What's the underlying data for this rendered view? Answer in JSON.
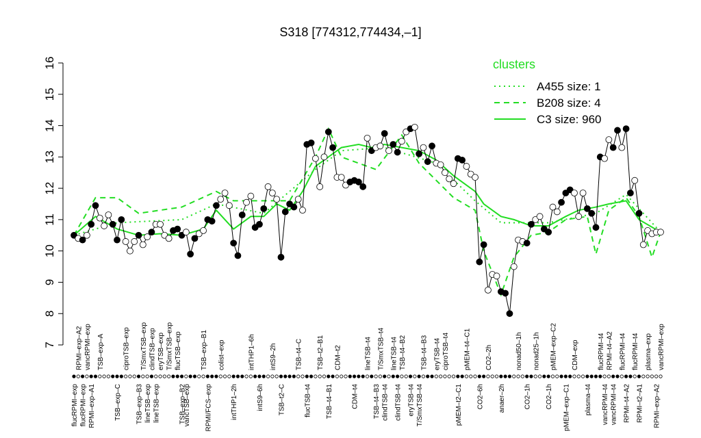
{
  "chart_data": {
    "type": "line",
    "title": "S318 [774312,774434,–1]",
    "ylim": [
      7,
      16
    ],
    "yticks": [
      7,
      8,
      9,
      10,
      11,
      12,
      13,
      14,
      15,
      16
    ],
    "categories_above": [
      null,
      "RPMI–exp–A2",
      null,
      "vancRPMI–exp",
      null,
      null,
      "TSB–exp–A",
      null,
      null,
      null,
      null,
      null,
      "ciproTSB–exp",
      null,
      null,
      null,
      "T/SmxTSB–exp",
      null,
      "clindTSB–exp",
      null,
      "eryTSB–exp",
      null,
      "T/SmxTSB–exp",
      null,
      "flucTSB–exp",
      null,
      null,
      null,
      null,
      null,
      "TSB–exp–B1",
      null,
      null,
      null,
      "colist–exp",
      null,
      null,
      null,
      null,
      null,
      null,
      "intTHP1–6h",
      null,
      null,
      null,
      null,
      "intS9–2h",
      null,
      null,
      null,
      null,
      null,
      "TSB–t4–C",
      null,
      null,
      null,
      null,
      "TSB–t2–B1",
      null,
      null,
      null,
      "CDM–t2",
      null,
      null,
      null,
      null,
      null,
      null,
      "lineTSB–t4",
      null,
      null,
      "T/SmxTSB–t4",
      null,
      null,
      "lineTSB–t4",
      null,
      "TSB–t4–B2",
      null,
      null,
      null,
      null,
      "TSB–t4–B3",
      null,
      null,
      "eryTSB–t4",
      null,
      "ciproTSB–t4",
      null,
      null,
      null,
      null,
      "pMEM–t4–C1",
      null,
      null,
      null,
      null,
      "CO2–2h",
      null,
      null,
      null,
      null,
      null,
      null,
      "nonad50–1h",
      null,
      null,
      null,
      "nonad25–1h",
      null,
      null,
      null,
      "pMEM–exp–C2",
      null,
      null,
      null,
      null,
      "CDM–exp",
      null,
      null,
      null,
      null,
      null,
      "flucRPMI–t4",
      null,
      "RPMI–t4–A2",
      null,
      null,
      "flucRPMI–t4",
      null,
      null,
      "flucRPMI–t4",
      null,
      null,
      "plasma–exp",
      null,
      null,
      "vancRPMI–exp"
    ],
    "categories_below": [
      "flucRPMI–exp",
      null,
      "flucRPMI–exp",
      null,
      "RPMI–exp–A1",
      null,
      null,
      null,
      null,
      null,
      "TSB–exp–C",
      null,
      null,
      null,
      null,
      "TSB–exp–B3",
      null,
      "lineTSB–exp",
      null,
      "lineTSB–exp",
      null,
      null,
      null,
      null,
      null,
      "TSB–exp–B2",
      "vancTSB–exp",
      null,
      null,
      null,
      null,
      "RPMI/FCS–exp",
      null,
      null,
      null,
      null,
      null,
      "intTHP1–2h",
      null,
      null,
      null,
      null,
      null,
      "intS9–6h",
      null,
      null,
      null,
      null,
      "TSB–t2–C",
      null,
      null,
      null,
      null,
      null,
      "flucTSB–t4",
      null,
      null,
      null,
      null,
      "TSB–t4–B1",
      null,
      null,
      null,
      null,
      null,
      "CDM–t4",
      null,
      null,
      null,
      null,
      "TSB–t4–B3",
      null,
      "clindTSB–t4",
      null,
      null,
      "clindTSB–t4",
      null,
      null,
      "eryTSB–t4",
      null,
      "T/SmxTSB–t4",
      null,
      null,
      null,
      null,
      null,
      null,
      null,
      null,
      "pMEM–t2–C1",
      null,
      null,
      null,
      null,
      "CO2–6h",
      null,
      null,
      null,
      null,
      "anaer–2h",
      null,
      null,
      null,
      null,
      null,
      "CO2–1h",
      null,
      null,
      null,
      null,
      "CO2–1h",
      null,
      null,
      null,
      "pMEM–exp–C1",
      null,
      null,
      null,
      null,
      "plasma–t4",
      null,
      null,
      null,
      "vancRPMI–t4",
      null,
      "vancRPMI–t4",
      null,
      null,
      "RPMI–t4–A2",
      null,
      null,
      "RPMI–t2–A1",
      null,
      null,
      null,
      "RPMI–exp–A2",
      null
    ],
    "values": [
      10.5,
      10.4,
      10.35,
      10.5,
      10.85,
      11.45,
      11.05,
      10.8,
      11.15,
      10.85,
      10.35,
      11.0,
      10.3,
      10.0,
      10.3,
      10.5,
      10.2,
      10.45,
      10.6,
      10.85,
      10.85,
      10.5,
      10.4,
      10.65,
      10.7,
      10.5,
      10.6,
      9.9,
      10.4,
      10.55,
      10.65,
      11.0,
      10.95,
      11.45,
      11.65,
      11.85,
      11.45,
      10.25,
      9.85,
      11.15,
      11.55,
      11.75,
      10.75,
      10.85,
      11.35,
      12.05,
      11.85,
      11.65,
      9.8,
      11.25,
      11.5,
      11.4,
      11.65,
      11.3,
      13.4,
      13.45,
      12.95,
      12.05,
      13.0,
      13.8,
      13.3,
      12.35,
      12.35,
      12.1,
      12.2,
      12.25,
      12.2,
      12.05,
      13.6,
      13.2,
      13.3,
      13.35,
      13.75,
      13.2,
      13.4,
      13.15,
      13.5,
      13.8,
      13.9,
      13.95,
      13.1,
      13.3,
      12.85,
      13.35,
      12.8,
      12.75,
      12.5,
      12.3,
      12.15,
      12.95,
      12.9,
      12.7,
      12.45,
      12.35,
      9.65,
      10.2,
      8.75,
      9.25,
      9.2,
      8.7,
      8.65,
      8.0,
      9.5,
      10.35,
      10.3,
      10.25,
      10.85,
      11.0,
      11.1,
      10.7,
      10.6,
      11.4,
      11.25,
      11.55,
      11.85,
      11.95,
      11.85,
      11.1,
      11.85,
      11.35,
      11.2,
      10.75,
      13.0,
      12.95,
      13.55,
      13.3,
      13.85,
      13.3,
      13.9,
      11.85,
      12.25,
      11.2,
      10.2,
      10.65,
      10.55,
      10.6,
      10.6
    ],
    "point_colors": [
      "#000",
      "#fff",
      "#000",
      "#fff",
      "#000",
      "#000",
      "#fff",
      "#fff",
      "#fff",
      "#000",
      "#000",
      "#000",
      "#fff",
      "#fff",
      "#fff",
      "#000",
      "#fff",
      "#fff",
      "#000",
      "#fff",
      "#fff",
      "#fff",
      "#fff",
      "#000",
      "#000",
      "#000",
      "#fff",
      "#000",
      "#000",
      "#fff",
      "#fff",
      "#000",
      "#000",
      "#000",
      "#fff",
      "#fff",
      "#fff",
      "#000",
      "#000",
      "#000",
      "#fff",
      "#fff",
      "#000",
      "#000",
      "#000",
      "#fff",
      "#fff",
      "#fff",
      "#000",
      "#000",
      "#000",
      "#000",
      "#fff",
      "#fff",
      "#000",
      "#000",
      "#fff",
      "#fff",
      "#fff",
      "#000",
      "#000",
      "#fff",
      "#fff",
      "#fff",
      "#000",
      "#000",
      "#000",
      "#000",
      "#fff",
      "#000",
      "#fff",
      "#fff",
      "#000",
      "#fff",
      "#000",
      "#000",
      "#fff",
      "#fff",
      "#000",
      "#fff",
      "#000",
      "#fff",
      "#000",
      "#000",
      "#fff",
      "#fff",
      "#fff",
      "#fff",
      "#fff",
      "#000",
      "#000",
      "#fff",
      "#fff",
      "#fff",
      "#000",
      "#000",
      "#fff",
      "#fff",
      "#fff",
      "#000",
      "#000",
      "#000",
      "#fff",
      "#fff",
      "#fff",
      "#000",
      "#000",
      "#fff",
      "#fff",
      "#000",
      "#000",
      "#fff",
      "#fff",
      "#000",
      "#000",
      "#000",
      "#fff",
      "#fff",
      "#fff",
      "#000",
      "#000",
      "#000",
      "#000",
      "#fff",
      "#fff",
      "#000",
      "#000",
      "#fff",
      "#000",
      "#000",
      "#fff",
      "#000",
      "#fff",
      "#fff",
      "#fff",
      "#fff",
      "#fff"
    ],
    "legend": {
      "title": "clusters",
      "position": "topright"
    },
    "series": [
      {
        "name": "A455 size: 1",
        "color": "#22dd22",
        "style": "dotted",
        "x": [
          0,
          10,
          25,
          33,
          44,
          56,
          62,
          72,
          84,
          93,
          99,
          110,
          121,
          128,
          136
        ],
        "values": [
          10.5,
          10.9,
          11.0,
          11.5,
          11.2,
          12.6,
          13.2,
          13.3,
          12.8,
          11.6,
          10.9,
          10.9,
          11.2,
          11.8,
          10.6
        ]
      },
      {
        "name": "B208 size: 4",
        "color": "#22dd22",
        "style": "dashed",
        "x": [
          0,
          5,
          10,
          15,
          25,
          33,
          37,
          44,
          50,
          56,
          59,
          62,
          66,
          70,
          76,
          80,
          88,
          93,
          95,
          99,
          102,
          106,
          110,
          114,
          119,
          121,
          124,
          128,
          131,
          134,
          136
        ],
        "values": [
          10.5,
          11.7,
          11.7,
          11.2,
          11.4,
          11.9,
          11.6,
          11.6,
          11.6,
          13.0,
          13.9,
          13.0,
          12.8,
          12.6,
          13.7,
          12.8,
          11.7,
          11.3,
          10.0,
          8.6,
          9.8,
          10.5,
          10.6,
          11.0,
          11.1,
          9.9,
          11.3,
          11.7,
          11.1,
          9.8,
          10.6
        ]
      },
      {
        "name": "C3 size: 960",
        "color": "#22dd22",
        "style": "solid",
        "x": [
          0,
          5,
          10,
          15,
          20,
          25,
          30,
          33,
          37,
          41,
          44,
          47,
          50,
          53,
          56,
          59,
          62,
          66,
          69,
          72,
          76,
          80,
          84,
          88,
          93,
          95,
          99,
          102,
          106,
          110,
          114,
          117,
          121,
          124,
          128,
          131,
          136
        ],
        "values": [
          10.5,
          11.1,
          10.7,
          10.5,
          10.55,
          10.5,
          10.7,
          11.3,
          10.7,
          11.1,
          11.1,
          11.5,
          11.3,
          11.9,
          12.7,
          13.0,
          13.3,
          13.4,
          13.3,
          13.4,
          13.3,
          13.2,
          12.9,
          12.4,
          11.9,
          11.5,
          11.1,
          11.0,
          10.8,
          10.8,
          11.1,
          11.3,
          11.4,
          11.5,
          11.6,
          11.0,
          10.6
        ]
      }
    ]
  }
}
